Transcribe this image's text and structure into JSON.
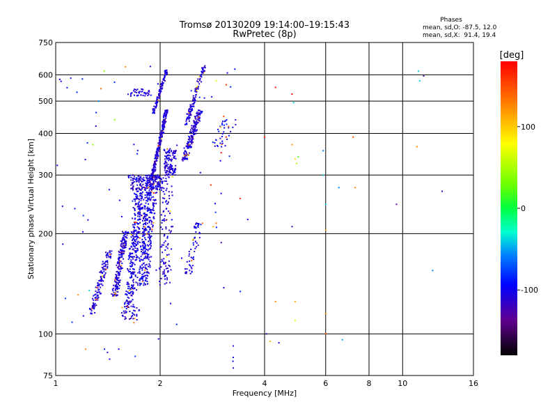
{
  "chart_data": {
    "type": "scatter",
    "title": "Tromsø 20130209 19:14:00–19:15:43",
    "subtitle": "RwPretec (8p)",
    "stats": {
      "heading": "Phases",
      "line1": "mean, sd,O: -87.5, 12.0",
      "line2": "mean, sd,X:  91.4, 19.4"
    },
    "xlabel": "Frequency [MHz]",
    "ylabel": "Stationary phase Virtual Height [km]",
    "x_scale": "log",
    "y_scale": "log",
    "xlim": [
      1,
      16
    ],
    "ylim": [
      75,
      750
    ],
    "x_ticks": [
      1,
      2,
      4,
      6,
      8,
      10,
      16
    ],
    "y_ticks": [
      75,
      100,
      200,
      300,
      400,
      500,
      600,
      750
    ],
    "grid": true,
    "colorbar": {
      "label": "[deg]",
      "range": [
        -180,
        180
      ],
      "ticks": [
        100,
        0,
        -100
      ]
    },
    "clusters": [
      {
        "x_range": [
          1.25,
          1.45
        ],
        "y_range": [
          115,
          180
        ],
        "phase": -110,
        "count": 130,
        "trend": 0.8
      },
      {
        "x_range": [
          1.45,
          1.62
        ],
        "y_range": [
          130,
          205
        ],
        "phase": -110,
        "count": 200,
        "trend": 0.7
      },
      {
        "x_range": [
          1.58,
          1.8
        ],
        "y_range": [
          120,
          280
        ],
        "phase": -105,
        "count": 320,
        "trend": 0.6
      },
      {
        "x_range": [
          1.72,
          1.97
        ],
        "y_range": [
          140,
          300
        ],
        "phase": -105,
        "count": 340,
        "trend": 0.5
      },
      {
        "x_range": [
          1.62,
          2.05
        ],
        "y_range": [
          270,
          300
        ],
        "phase": -110,
        "count": 160,
        "trend": 0.0
      },
      {
        "x_range": [
          1.88,
          2.1
        ],
        "y_range": [
          290,
          470
        ],
        "phase": -110,
        "count": 260,
        "trend": 0.9
      },
      {
        "x_range": [
          1.9,
          2.1
        ],
        "y_range": [
          460,
          620
        ],
        "phase": -110,
        "count": 110,
        "trend": 0.9
      },
      {
        "x_range": [
          1.98,
          2.2
        ],
        "y_range": [
          140,
          320
        ],
        "phase": -110,
        "count": 120,
        "trend": 0.3
      },
      {
        "x_range": [
          2.05,
          2.22
        ],
        "y_range": [
          300,
          360
        ],
        "phase": -110,
        "count": 110,
        "trend": 0.0
      },
      {
        "x_range": [
          2.3,
          2.65
        ],
        "y_range": [
          330,
          470
        ],
        "phase": -110,
        "count": 180,
        "trend": 0.8
      },
      {
        "x_range": [
          2.35,
          2.7
        ],
        "y_range": [
          420,
          640
        ],
        "phase": -110,
        "count": 120,
        "trend": 0.9
      },
      {
        "x_range": [
          2.35,
          2.65
        ],
        "y_range": [
          150,
          220
        ],
        "phase": -105,
        "count": 60,
        "trend": 0.6
      },
      {
        "x_range": [
          1.6,
          1.92
        ],
        "y_range": [
          515,
          545
        ],
        "phase": -110,
        "count": 40,
        "trend": 0.3
      },
      {
        "x_range": [
          1.55,
          1.75
        ],
        "y_range": [
          110,
          125
        ],
        "phase": -110,
        "count": 40,
        "trend": 0.0
      },
      {
        "x_range": [
          2.8,
          3.3
        ],
        "y_range": [
          360,
          440
        ],
        "phase": -100,
        "count": 35,
        "trend": 0.5
      },
      {
        "x_range": [
          1.0,
          4.0
        ],
        "y_range": [
          80,
          640
        ],
        "phase": -95,
        "count": 70,
        "trend": 0.0
      }
    ],
    "scatter_points": [
      {
        "x": 1.38,
        "y": 615,
        "phase": 40
      },
      {
        "x": 1.28,
        "y": 370,
        "phase": 40
      },
      {
        "x": 1.33,
        "y": 500,
        "phase": -60
      },
      {
        "x": 1.35,
        "y": 545,
        "phase": 140
      },
      {
        "x": 1.48,
        "y": 440,
        "phase": 40
      },
      {
        "x": 1.63,
        "y": 135,
        "phase": 120
      },
      {
        "x": 1.68,
        "y": 108,
        "phase": 140
      },
      {
        "x": 1.41,
        "y": 88,
        "phase": -100
      },
      {
        "x": 1.43,
        "y": 84,
        "phase": -100
      },
      {
        "x": 1.22,
        "y": 90,
        "phase": 130
      },
      {
        "x": 1.52,
        "y": 90,
        "phase": -100
      },
      {
        "x": 2.9,
        "y": 575,
        "phase": 90
      },
      {
        "x": 3.1,
        "y": 560,
        "phase": 160
      },
      {
        "x": 3.05,
        "y": 450,
        "phase": 150
      },
      {
        "x": 3.15,
        "y": 420,
        "phase": 140
      },
      {
        "x": 3.3,
        "y": 425,
        "phase": -110
      },
      {
        "x": 3.1,
        "y": 390,
        "phase": 170
      },
      {
        "x": 3.0,
        "y": 350,
        "phase": 175
      },
      {
        "x": 2.8,
        "y": 280,
        "phase": 165
      },
      {
        "x": 2.65,
        "y": 215,
        "phase": 140
      },
      {
        "x": 2.9,
        "y": 215,
        "phase": 140
      },
      {
        "x": 2.85,
        "y": 210,
        "phase": 120
      },
      {
        "x": 3.0,
        "y": 188,
        "phase": -130
      },
      {
        "x": 3.4,
        "y": 255,
        "phase": 170
      },
      {
        "x": 3.25,
        "y": 92,
        "phase": -110
      },
      {
        "x": 3.25,
        "y": 85,
        "phase": -110
      },
      {
        "x": 3.25,
        "y": 79,
        "phase": -110
      },
      {
        "x": 4.0,
        "y": 390,
        "phase": 170
      },
      {
        "x": 4.05,
        "y": 100,
        "phase": -120
      },
      {
        "x": 4.15,
        "y": 95,
        "phase": 120
      },
      {
        "x": 4.3,
        "y": 550,
        "phase": 175
      },
      {
        "x": 4.3,
        "y": 125,
        "phase": 130
      },
      {
        "x": 4.4,
        "y": 94,
        "phase": -100
      },
      {
        "x": 4.8,
        "y": 525,
        "phase": 175
      },
      {
        "x": 4.85,
        "y": 495,
        "phase": -40
      },
      {
        "x": 4.8,
        "y": 370,
        "phase": 130
      },
      {
        "x": 4.9,
        "y": 335,
        "phase": 110
      },
      {
        "x": 4.95,
        "y": 325,
        "phase": 60
      },
      {
        "x": 5.0,
        "y": 340,
        "phase": 20
      },
      {
        "x": 4.8,
        "y": 210,
        "phase": -120
      },
      {
        "x": 4.9,
        "y": 125,
        "phase": 120
      },
      {
        "x": 4.9,
        "y": 110,
        "phase": 80
      },
      {
        "x": 5.9,
        "y": 355,
        "phase": -60
      },
      {
        "x": 5.9,
        "y": 300,
        "phase": -40
      },
      {
        "x": 6.0,
        "y": 245,
        "phase": -40
      },
      {
        "x": 6.0,
        "y": 205,
        "phase": 130
      },
      {
        "x": 6.0,
        "y": 115,
        "phase": 130
      },
      {
        "x": 6.0,
        "y": 100,
        "phase": 150
      },
      {
        "x": 6.55,
        "y": 275,
        "phase": -60
      },
      {
        "x": 6.7,
        "y": 96,
        "phase": -50
      },
      {
        "x": 7.2,
        "y": 390,
        "phase": 150
      },
      {
        "x": 7.3,
        "y": 275,
        "phase": 130
      },
      {
        "x": 9.6,
        "y": 245,
        "phase": -140
      },
      {
        "x": 11.1,
        "y": 615,
        "phase": -40
      },
      {
        "x": 11.2,
        "y": 575,
        "phase": -40
      },
      {
        "x": 11.5,
        "y": 595,
        "phase": -130
      },
      {
        "x": 11.0,
        "y": 365,
        "phase": 130
      },
      {
        "x": 12.2,
        "y": 155,
        "phase": -60
      },
      {
        "x": 13.0,
        "y": 268,
        "phase": -110
      },
      {
        "x": 1.25,
        "y": 135,
        "phase": -40
      }
    ]
  }
}
